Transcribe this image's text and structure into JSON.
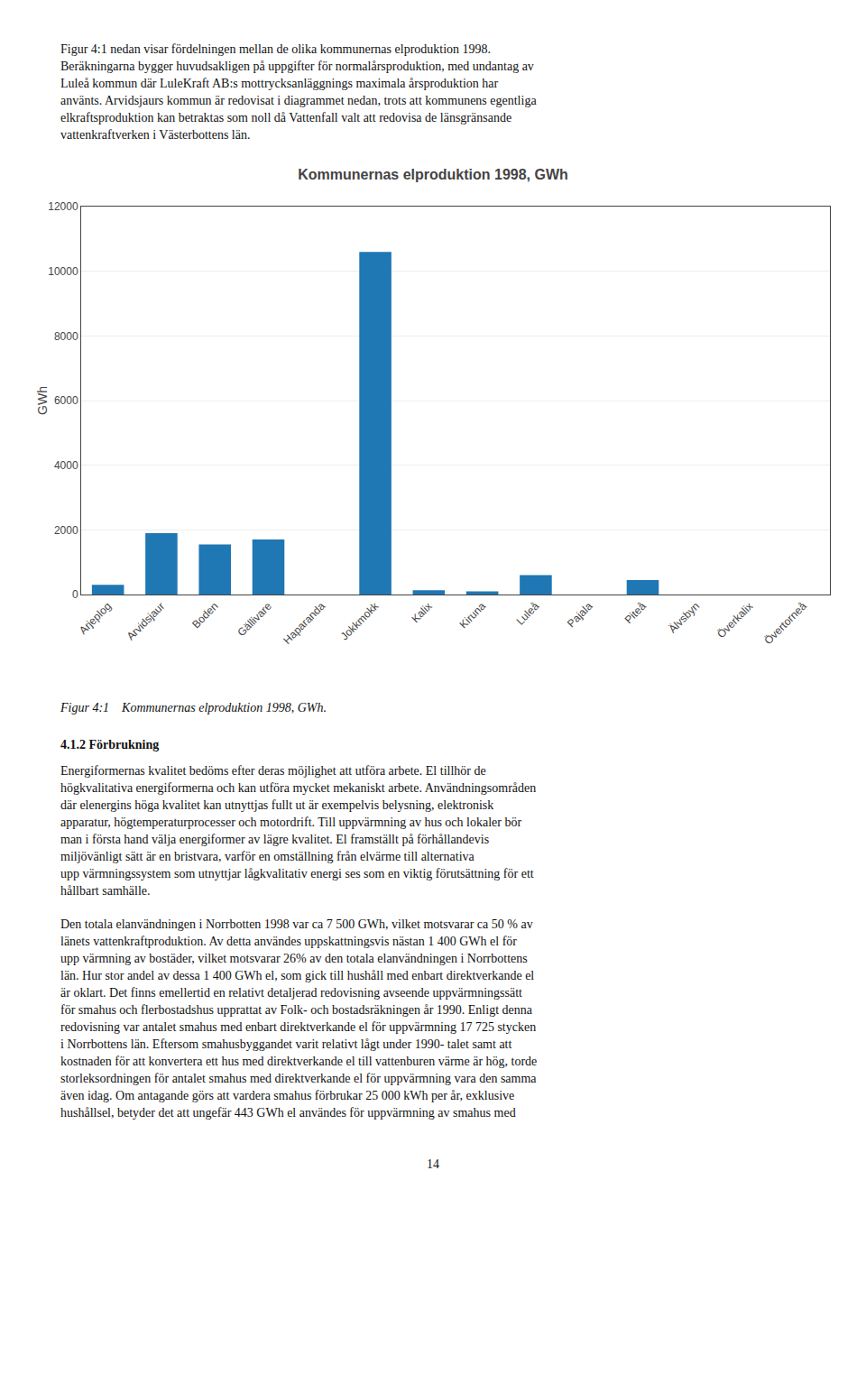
{
  "chart_data": {
    "type": "bar",
    "title": "Kommunernas elproduktion 1998, GWh",
    "ylabel": "GWh",
    "categories": [
      "Arjeplog",
      "Arvidsjaur",
      "Boden",
      "Gällivare",
      "Haparanda",
      "Jokkmokk",
      "Kalix",
      "Kiruna",
      "Luleå",
      "Pajala",
      "Piteå",
      "Älvsbyn",
      "Överkalix",
      "Övertorneå"
    ],
    "values": [
      300,
      1900,
      1550,
      1700,
      0,
      10600,
      130,
      100,
      600,
      0,
      450,
      0,
      0,
      0
    ],
    "ylim": [
      0,
      12000
    ],
    "yticks": [
      0,
      2000,
      4000,
      6000,
      8000,
      10000,
      12000
    ],
    "grid": true,
    "annotations": [
      "Figur 4:1 nedan visar fördelningen mellan de olika kommunernas elproduktion 1998.\nBeräkningarna bygger huvudsakligen på uppgifter för normalårsproduktion, med undantag av\nLuleå kommun där LuleKraft AB:s mottrycksanläggnings maximala årsproduktion har\nanvänts. Arvidsjaurs kommun är redovisat i diagrammet nedan, trots att kommunens egentliga\nelkraftsproduktion kan betraktas som noll då Vattenfall valt att redovisa de länsgränsande\nvattenkraftverken i Västerbottens län.",
      "Figur 4:1    Kommunernas elproduktion 1998, GWh.",
      "4.1.2 Förbrukning",
      "Energiformernas kvalitet bedöms efter deras möjlighet att utföra arbete. El tillhör de\nhögkvalitativa energiformerna och kan utföra mycket mekaniskt arbete. Användningsområden\ndär elenergins höga kvalitet kan utnyttjas fullt ut är exempelvis belysning, elektronisk\napparatur, högtemperaturprocesser och motordrift. Till uppvärmning av hus och lokaler bör\nman i första hand välja energiformer av lägre kvalitet. El framställt på förhållandevis\nmiljövänligt sätt är en bristvara, varför en omställning från elvärme till alternativa\nupp värmningssystem som utnyttjar lågkvalitativ energi ses som en viktig förutsättning för ett\nhållbart samhälle.",
      "Den totala elanvändningen i Norrbotten 1998 var ca 7 500 GWh, vilket motsvarar ca 50 % av\nlänets vattenkraftproduktion. Av detta användes uppskattningsvis nästan 1 400 GWh el för\nupp värmning av bostäder, vilket motsvarar 26% av den totala elanvändningen i Norrbottens\nlän. Hur stor andel av dessa 1 400 GWh el, som gick till hushåll med enbart direktverkande el\när oklart. Det finns emellertid en relativt detaljerad redovisning avseende uppvärmningssätt\nför smahus och flerbostadshus upprattat av Folk- och bostadsräkningen år 1990. Enligt denna\nredovisning var antalet smahus med enbart direktverkande el för uppvärmning 17 725 stycken\ni Norrbottens län. Eftersom smahusbyggandet varit relativt lågt under 1990- talet samt att\nkostnaden för att konvertera ett hus med direktverkande el till vattenburen värme är hög, torde\nstorleksordningen för antalet smahus med direktverkande el för uppvärmning vara den samma\näven idag. Om antagande görs att vardera smahus förbrukar 25 000 kWh per år, exklusive\nhushållsel, betyder det att ungefär 443 GWh el användes för uppvärmning av smahus med",
      "14"
    ]
  }
}
